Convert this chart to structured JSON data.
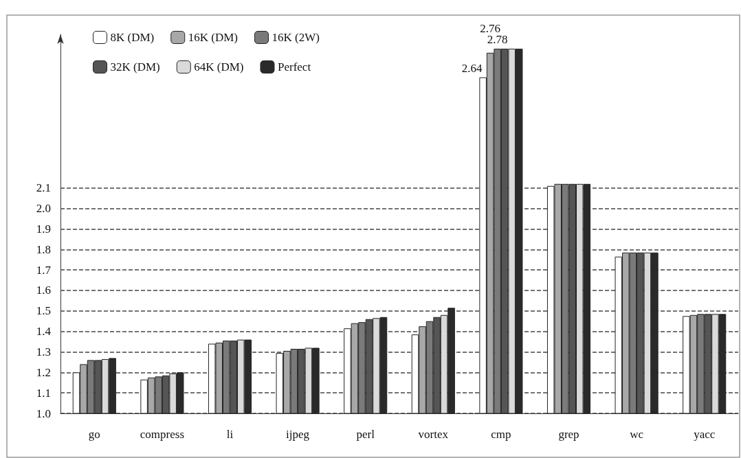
{
  "chart_data": {
    "type": "bar",
    "categories": [
      "go",
      "compress",
      "li",
      "ijpeg",
      "perl",
      "vortex",
      "cmp",
      "grep",
      "wc",
      "yacc"
    ],
    "series": [
      {
        "name": "8K (DM)",
        "color": "#ffffff",
        "values": [
          1.2,
          1.165,
          1.34,
          1.295,
          1.415,
          1.385,
          2.64,
          2.11,
          1.765,
          1.475
        ],
        "value_labels": [
          null,
          null,
          null,
          null,
          null,
          null,
          "2.64",
          null,
          null,
          null
        ]
      },
      {
        "name": "16K (DM)",
        "color": "#a8a8a8",
        "values": [
          1.24,
          1.175,
          1.345,
          1.305,
          1.44,
          1.425,
          2.76,
          2.12,
          1.785,
          1.48
        ],
        "value_labels": [
          null,
          null,
          null,
          null,
          null,
          null,
          "2.76",
          null,
          null,
          null
        ]
      },
      {
        "name": "16K (2W)",
        "color": "#7a7a7a",
        "values": [
          1.26,
          1.18,
          1.355,
          1.315,
          1.445,
          1.45,
          2.78,
          2.12,
          1.785,
          1.485
        ],
        "value_labels": [
          null,
          null,
          null,
          null,
          null,
          null,
          "2.78",
          null,
          null,
          null
        ]
      },
      {
        "name": "32K (DM)",
        "color": "#555555",
        "values": [
          1.26,
          1.185,
          1.355,
          1.315,
          1.46,
          1.47,
          2.78,
          2.12,
          1.785,
          1.485
        ]
      },
      {
        "name": "64K (DM)",
        "color": "#dadada",
        "values": [
          1.265,
          1.195,
          1.36,
          1.32,
          1.465,
          1.48,
          2.78,
          2.12,
          1.785,
          1.485
        ]
      },
      {
        "name": "Perfect",
        "color": "#2a2a2a",
        "values": [
          1.27,
          1.2,
          1.36,
          1.32,
          1.47,
          1.515,
          2.78,
          2.12,
          1.785,
          1.485
        ]
      }
    ],
    "ylim": [
      1.0,
      2.85
    ],
    "yticks": [
      {
        "value": 1,
        "label": "1.0"
      },
      1.1,
      1.2,
      1.3,
      1.4,
      1.5,
      1.6,
      1.7,
      1.8,
      1.9,
      {
        "value": 2,
        "label": "2.0"
      },
      2.1
    ],
    "grid": "y",
    "legend": "top left"
  }
}
